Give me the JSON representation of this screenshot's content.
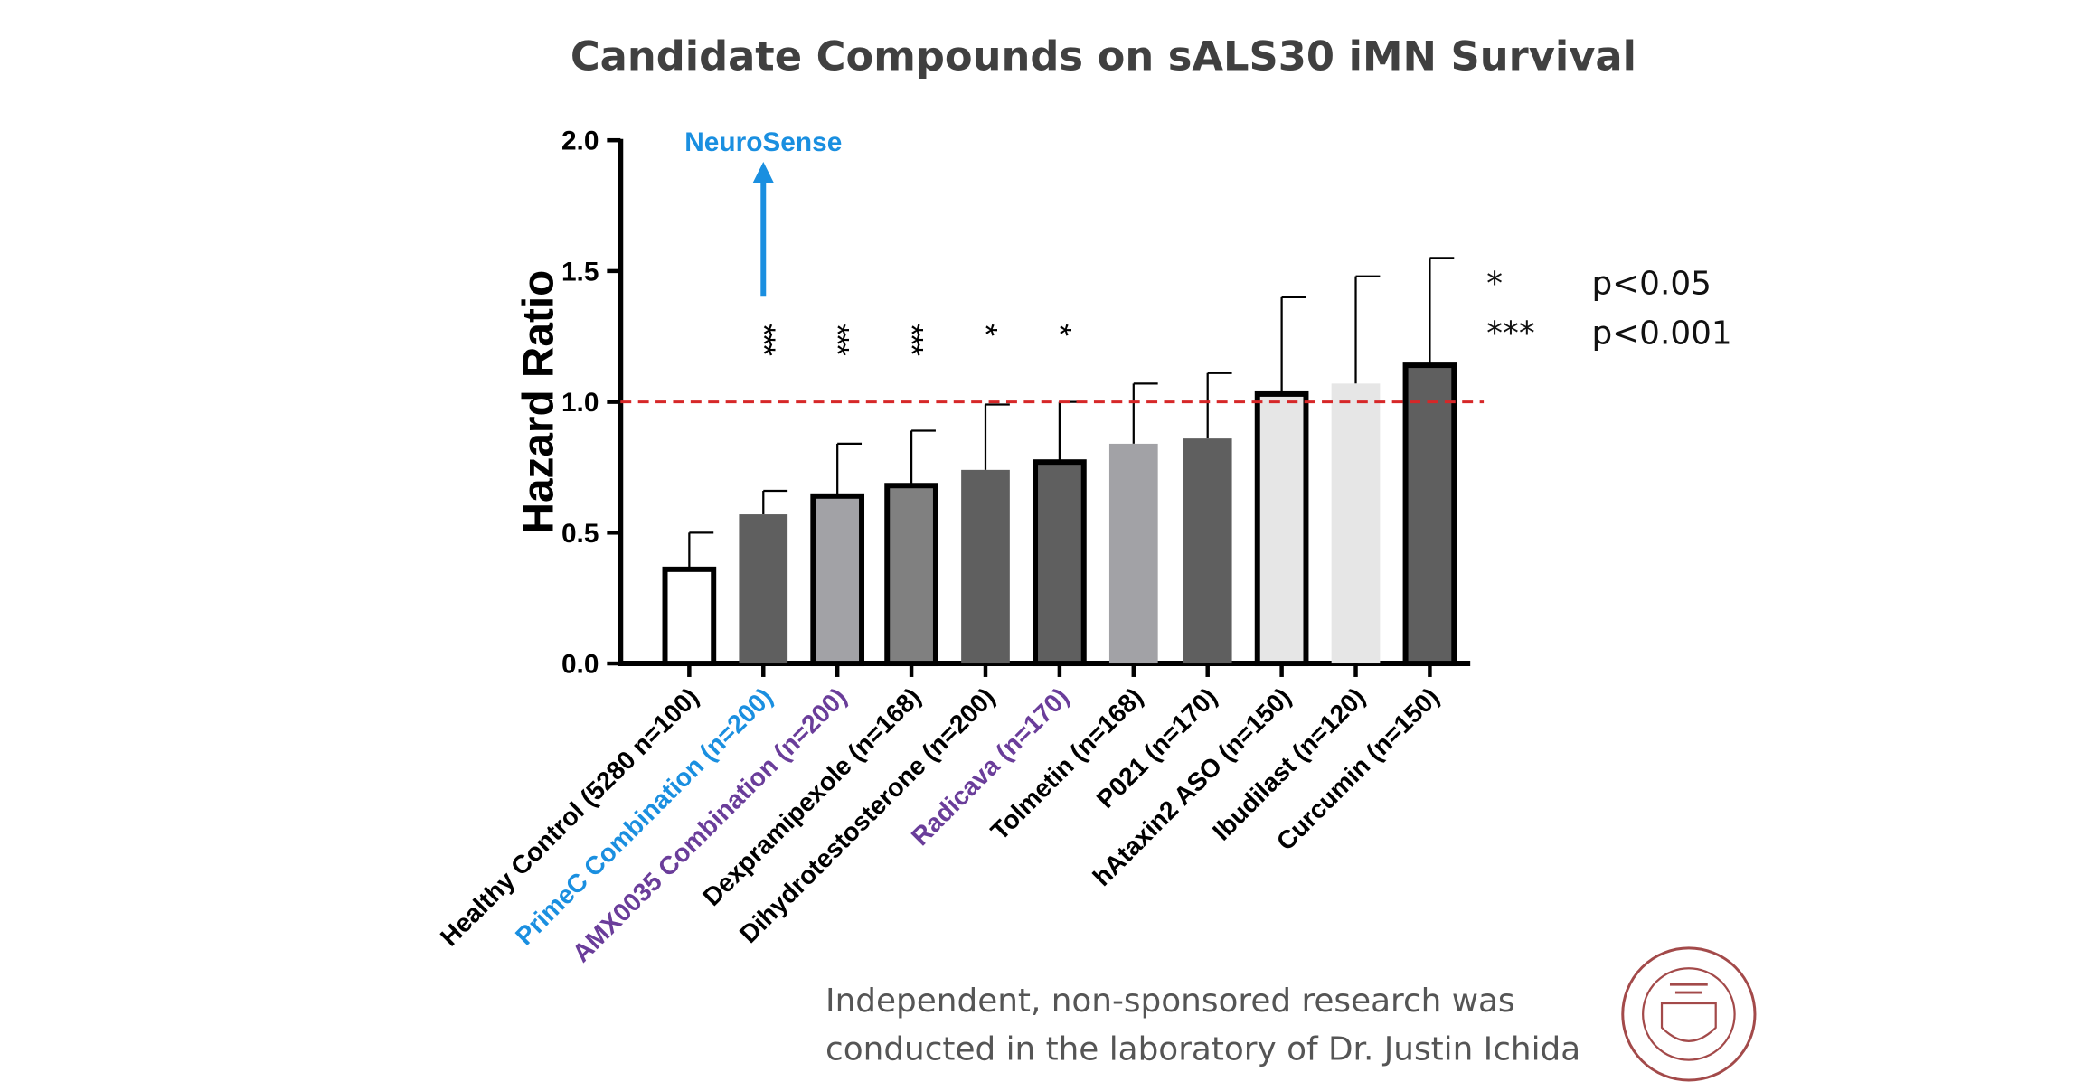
{
  "chart_data": {
    "type": "bar",
    "title": "Candidate Compounds on sALS30 iMN Survival",
    "y_label": "Hazard Ratio",
    "categories": [
      "Healthy Control (5280 n=100)",
      "PrimeC Combination (n=200)",
      "AMX0035 Combination (n=200)",
      "Dexpramipexole (n=168)",
      "Dihydrotestosterone (n=200)",
      "Radicava (n=170)",
      "Tolmetin (n=168)",
      "P021 (n=170)",
      "hAtaxin2 ASO (n=150)",
      "Ibudilast (n=120)",
      "Curcumin (n=150)"
    ],
    "values": [
      0.36,
      0.57,
      0.64,
      0.68,
      0.74,
      0.77,
      0.84,
      0.86,
      1.03,
      1.07,
      1.14
    ],
    "errors": [
      0.14,
      0.09,
      0.2,
      0.21,
      0.25,
      0.23,
      0.23,
      0.25,
      0.37,
      0.41,
      0.41
    ],
    "colors": [
      "#ffffff",
      "#5f5f5f",
      "#a2a2a6",
      "#808080",
      "#5f5f5f",
      "#5f5f5f",
      "#a2a2a6",
      "#5f5f5f",
      "#e6e6e6",
      "#e6e6e6",
      "#5f5f5f"
    ],
    "outlined": [
      true,
      false,
      true,
      true,
      false,
      true,
      false,
      false,
      true,
      false,
      true
    ],
    "label_colors": [
      "#000000",
      "#1a8fe0",
      "#6a3d9a",
      "#000000",
      "#000000",
      "#6a3d9a",
      "#000000",
      "#000000",
      "#000000",
      "#000000",
      "#000000"
    ],
    "significance": [
      null,
      "***",
      "***",
      "***",
      "*",
      "*",
      null,
      null,
      null,
      null,
      null
    ],
    "ylim": [
      0,
      2
    ],
    "yticks": [
      {
        "value": 0,
        "label": "0.0"
      },
      0.5,
      {
        "value": 1,
        "label": "1.0"
      },
      1.5,
      {
        "value": 2,
        "label": "2.0"
      }
    ],
    "reference_line": {
      "value": 1,
      "color": "#d62728"
    },
    "arrow_annotation": {
      "text": "NeuroSense",
      "category_index": 1,
      "color": "#1a8fe0"
    },
    "legend": [
      {
        "symbol": "*",
        "text": "p<0.05"
      },
      {
        "symbol": "***",
        "text": "p<0.001"
      }
    ],
    "footnote": [
      "Independent, non-sponsored research was",
      "conducted in the laboratory of Dr. Justin Ichida"
    ]
  }
}
